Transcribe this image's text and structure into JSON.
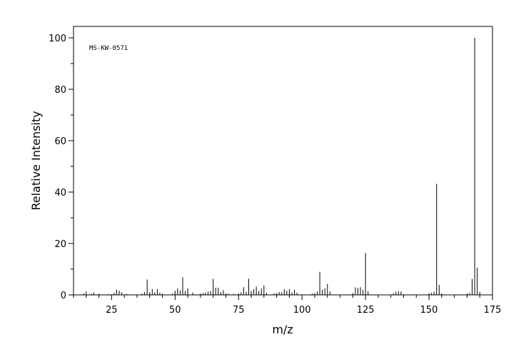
{
  "chart_data": {
    "type": "bar",
    "title": "",
    "annotation": "MS-KW-0571",
    "xlabel": "m/z",
    "ylabel": "Relative Intensity",
    "xlim": [
      10,
      175
    ],
    "ylim": [
      0,
      105
    ],
    "x_ticks": [
      25,
      50,
      75,
      100,
      125,
      150,
      175
    ],
    "y_ticks": [
      0,
      20,
      40,
      60,
      80,
      100
    ],
    "grid": false,
    "legend": "none",
    "line_color": "#000000",
    "peaks": [
      {
        "x": 14,
        "y": 0.6
      },
      {
        "x": 15,
        "y": 1.3
      },
      {
        "x": 17,
        "y": 0.5
      },
      {
        "x": 18,
        "y": 0.9
      },
      {
        "x": 20,
        "y": 0.4
      },
      {
        "x": 24,
        "y": 0.3
      },
      {
        "x": 26,
        "y": 0.8
      },
      {
        "x": 27,
        "y": 2.0
      },
      {
        "x": 28,
        "y": 1.6
      },
      {
        "x": 29,
        "y": 1.0
      },
      {
        "x": 31,
        "y": 0.4
      },
      {
        "x": 37,
        "y": 0.5
      },
      {
        "x": 38,
        "y": 1.1
      },
      {
        "x": 39,
        "y": 6.0
      },
      {
        "x": 40,
        "y": 1.0
      },
      {
        "x": 41,
        "y": 2.3
      },
      {
        "x": 42,
        "y": 1.0
      },
      {
        "x": 43,
        "y": 2.3
      },
      {
        "x": 44,
        "y": 0.8
      },
      {
        "x": 45,
        "y": 0.4
      },
      {
        "x": 49,
        "y": 0.6
      },
      {
        "x": 50,
        "y": 1.6
      },
      {
        "x": 51,
        "y": 2.5
      },
      {
        "x": 52,
        "y": 1.7
      },
      {
        "x": 53,
        "y": 6.8
      },
      {
        "x": 54,
        "y": 1.5
      },
      {
        "x": 55,
        "y": 2.5
      },
      {
        "x": 57,
        "y": 0.9
      },
      {
        "x": 60,
        "y": 0.5
      },
      {
        "x": 61,
        "y": 0.7
      },
      {
        "x": 62,
        "y": 1.0
      },
      {
        "x": 63,
        "y": 1.3
      },
      {
        "x": 64,
        "y": 1.5
      },
      {
        "x": 65,
        "y": 6.2
      },
      {
        "x": 66,
        "y": 2.8
      },
      {
        "x": 67,
        "y": 2.8
      },
      {
        "x": 68,
        "y": 1.0
      },
      {
        "x": 69,
        "y": 1.8
      },
      {
        "x": 70,
        "y": 0.6
      },
      {
        "x": 71,
        "y": 0.5
      },
      {
        "x": 73,
        "y": 0.4
      },
      {
        "x": 75,
        "y": 0.6
      },
      {
        "x": 76,
        "y": 1.0
      },
      {
        "x": 77,
        "y": 3.0
      },
      {
        "x": 78,
        "y": 1.2
      },
      {
        "x": 79,
        "y": 6.3
      },
      {
        "x": 80,
        "y": 1.5
      },
      {
        "x": 81,
        "y": 2.2
      },
      {
        "x": 82,
        "y": 3.2
      },
      {
        "x": 83,
        "y": 1.5
      },
      {
        "x": 84,
        "y": 2.5
      },
      {
        "x": 85,
        "y": 3.7
      },
      {
        "x": 86,
        "y": 0.8
      },
      {
        "x": 89,
        "y": 0.6
      },
      {
        "x": 90,
        "y": 0.7
      },
      {
        "x": 91,
        "y": 1.1
      },
      {
        "x": 92,
        "y": 1.0
      },
      {
        "x": 93,
        "y": 2.2
      },
      {
        "x": 94,
        "y": 1.6
      },
      {
        "x": 95,
        "y": 2.2
      },
      {
        "x": 96,
        "y": 1.0
      },
      {
        "x": 97,
        "y": 2.0
      },
      {
        "x": 98,
        "y": 0.8
      },
      {
        "x": 104,
        "y": 0.5
      },
      {
        "x": 105,
        "y": 0.7
      },
      {
        "x": 106,
        "y": 1.3
      },
      {
        "x": 107,
        "y": 9.0
      },
      {
        "x": 108,
        "y": 2.0
      },
      {
        "x": 109,
        "y": 2.6
      },
      {
        "x": 110,
        "y": 4.2
      },
      {
        "x": 111,
        "y": 1.3
      },
      {
        "x": 120,
        "y": 0.7
      },
      {
        "x": 121,
        "y": 2.9
      },
      {
        "x": 122,
        "y": 2.7
      },
      {
        "x": 123,
        "y": 3.0
      },
      {
        "x": 124,
        "y": 1.9
      },
      {
        "x": 125,
        "y": 16.3
      },
      {
        "x": 126,
        "y": 1.4
      },
      {
        "x": 136,
        "y": 0.6
      },
      {
        "x": 137,
        "y": 1.2
      },
      {
        "x": 138,
        "y": 1.4
      },
      {
        "x": 139,
        "y": 1.3
      },
      {
        "x": 150,
        "y": 0.6
      },
      {
        "x": 151,
        "y": 0.8
      },
      {
        "x": 152,
        "y": 1.2
      },
      {
        "x": 153,
        "y": 43.2
      },
      {
        "x": 154,
        "y": 3.9
      },
      {
        "x": 155,
        "y": 0.6
      },
      {
        "x": 165,
        "y": 0.6
      },
      {
        "x": 166,
        "y": 0.8
      },
      {
        "x": 167,
        "y": 6.2
      },
      {
        "x": 168,
        "y": 100
      },
      {
        "x": 169,
        "y": 10.6
      },
      {
        "x": 170,
        "y": 1.2
      }
    ]
  }
}
